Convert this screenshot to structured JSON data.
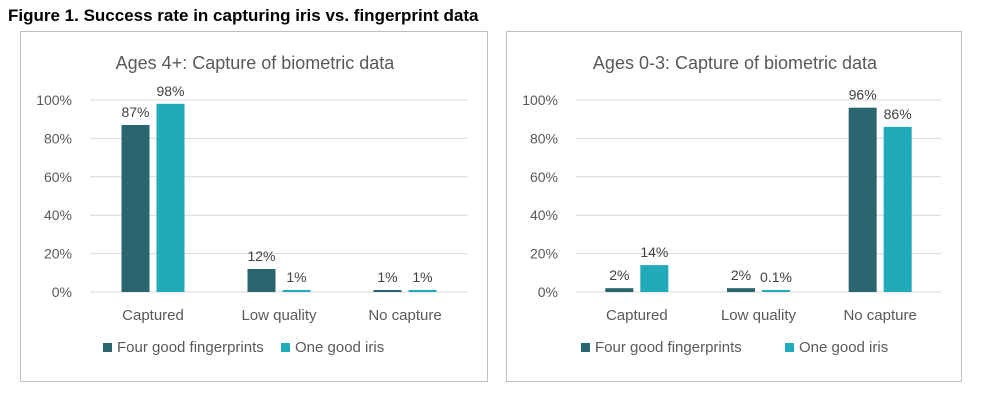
{
  "figure_title": "Figure 1. Success rate in capturing iris vs. fingerprint data",
  "colors": {
    "fingerprints": "#2a6670",
    "iris": "#21aab9",
    "grid": "#d9d9d9",
    "text": "#595959"
  },
  "chart_data": [
    {
      "type": "bar",
      "title": "Ages 4+: Capture of biometric data",
      "categories": [
        "Captured",
        "Low quality",
        "No capture"
      ],
      "ylim": [
        0,
        100
      ],
      "yticks": [
        "0%",
        "20%",
        "40%",
        "60%",
        "80%",
        "100%"
      ],
      "series": [
        {
          "name": "Four good fingerprints",
          "values": [
            87,
            12,
            1
          ],
          "labels": [
            "87%",
            "12%",
            "1%"
          ]
        },
        {
          "name": "One good iris",
          "values": [
            98,
            1,
            1
          ],
          "labels": [
            "98%",
            "1%",
            "1%"
          ]
        }
      ],
      "grid": true,
      "legend": "bottom"
    },
    {
      "type": "bar",
      "title": "Ages 0-3: Capture of biometric data",
      "categories": [
        "Captured",
        "Low quality",
        "No capture"
      ],
      "ylim": [
        0,
        100
      ],
      "yticks": [
        "0%",
        "20%",
        "40%",
        "60%",
        "80%",
        "100%"
      ],
      "series": [
        {
          "name": "Four good fingerprints",
          "values": [
            2,
            2,
            96
          ],
          "labels": [
            "2%",
            "2%",
            "96%"
          ]
        },
        {
          "name": "One good iris",
          "values": [
            14,
            0.1,
            86
          ],
          "labels": [
            "14%",
            "0.1%",
            "86%"
          ]
        }
      ],
      "grid": true,
      "legend": "bottom"
    }
  ]
}
